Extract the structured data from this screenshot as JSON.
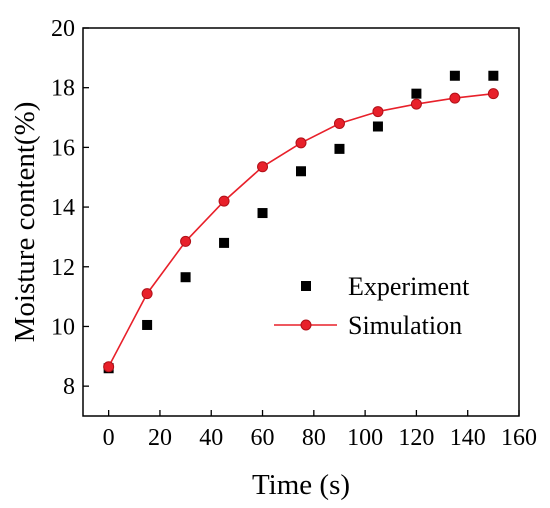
{
  "chart_data": {
    "type": "scatter",
    "xlabel": "Time (s)",
    "ylabel": "Moisture content(%)",
    "xlim": [
      -10,
      160
    ],
    "ylim": [
      7,
      20
    ],
    "xticks": [
      0,
      20,
      40,
      60,
      80,
      100,
      120,
      140,
      160
    ],
    "yticks": [
      8,
      10,
      12,
      14,
      16,
      18,
      20
    ],
    "grid": false,
    "legend_position": "center-right",
    "series": [
      {
        "name": "Experiment",
        "kind": "scatter",
        "marker": "square",
        "color": "#000000",
        "x": [
          0,
          15,
          30,
          45,
          60,
          75,
          90,
          105,
          120,
          135,
          150
        ],
        "y": [
          8.6,
          10.05,
          11.65,
          12.8,
          13.8,
          15.2,
          15.95,
          16.7,
          17.8,
          18.4,
          18.4
        ]
      },
      {
        "name": "Simulation",
        "kind": "line",
        "marker": "circle",
        "color": "#e8202a",
        "x": [
          0,
          15,
          30,
          45,
          60,
          75,
          90,
          105,
          120,
          135,
          150
        ],
        "y": [
          8.65,
          11.1,
          12.85,
          14.2,
          15.35,
          16.15,
          16.8,
          17.2,
          17.45,
          17.65,
          17.8
        ]
      }
    ]
  }
}
